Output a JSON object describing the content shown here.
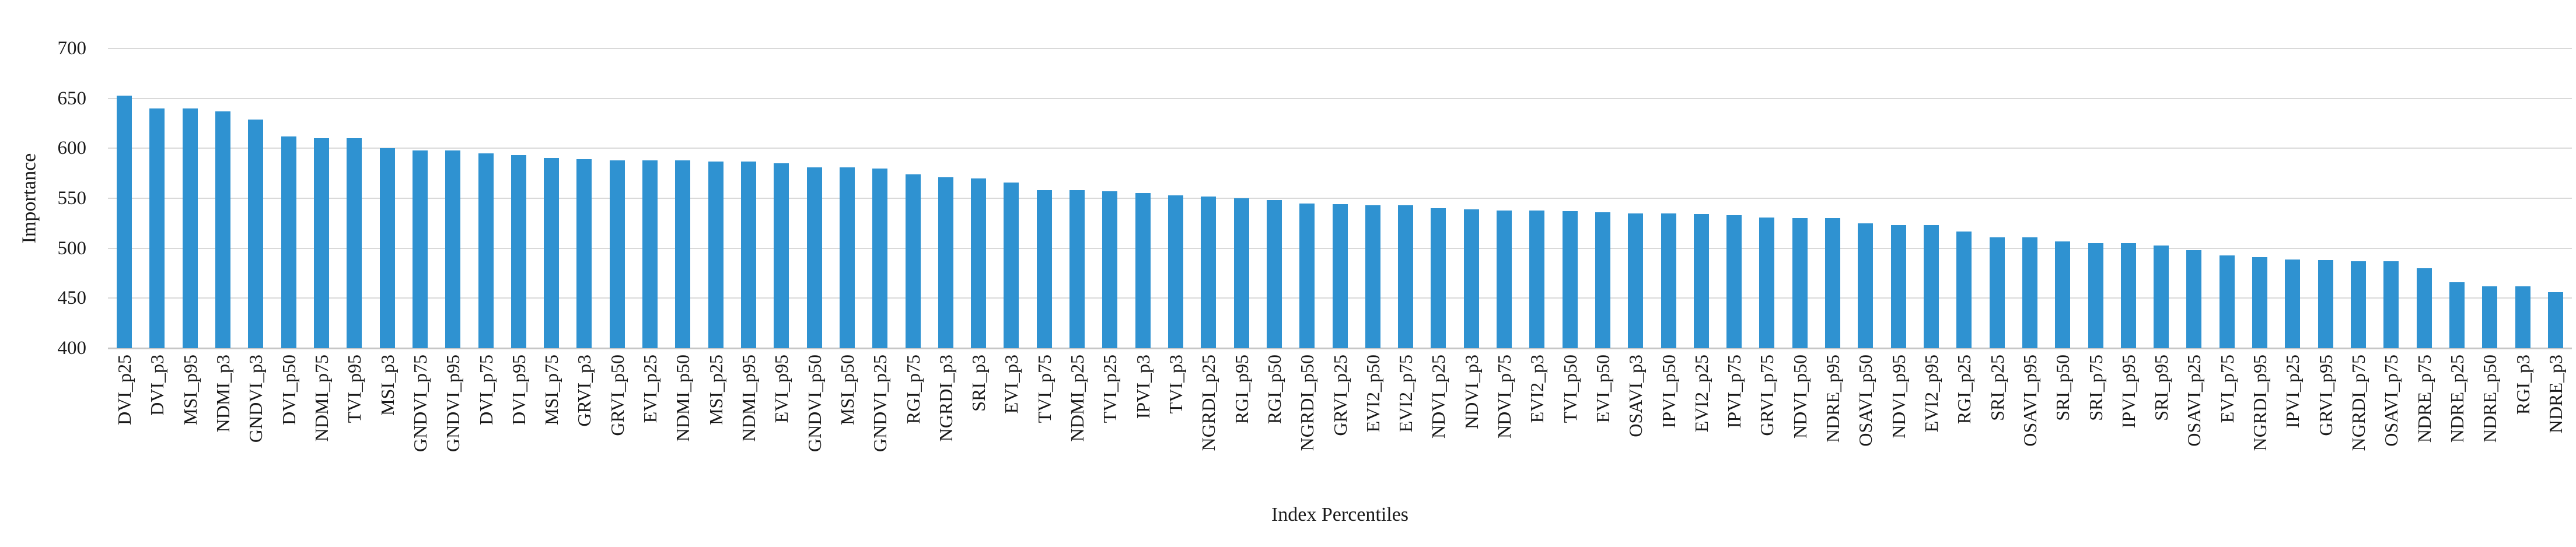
{
  "chart_data": {
    "type": "bar",
    "title": "",
    "xlabel": "Index Percentiles",
    "ylabel": "Importance",
    "ylim": [
      400,
      700
    ],
    "yticks": [
      400,
      450,
      500,
      550,
      600,
      650,
      700
    ],
    "grid": "horizontal",
    "legend_position": "none",
    "bar_color": "#2F92D1",
    "gridline_color": "#D9D9D9",
    "axis_line_color": "#C6C6C6",
    "text_color": "#1a1a1a",
    "categories": [
      "DVI_p25",
      "DVI_p3",
      "MSI_p95",
      "NDMI_p3",
      "GNDVI_p3",
      "DVI_p50",
      "NDMI_p75",
      "TVI_p95",
      "MSI_p3",
      "GNDVI_p75",
      "GNDVI_p95",
      "DVI_p75",
      "DVI_p95",
      "MSI_p75",
      "GRVI_p3",
      "GRVI_p50",
      "EVI_p25",
      "NDMI_p50",
      "MSI_p25",
      "NDMI_p95",
      "EVI_p95",
      "GNDVI_p50",
      "MSI_p50",
      "GNDVI_p25",
      "RGI_p75",
      "NGRDI_p3",
      "SRI_p3",
      "EVI_p3",
      "TVI_p75",
      "NDMI_p25",
      "TVI_p25",
      "IPVI_p3",
      "TVI_p3",
      "NGRDI_p25",
      "RGI_p95",
      "RGI_p50",
      "NGRDI_p50",
      "GRVI_p25",
      "EVI2_p50",
      "EVI2_p75",
      "NDVI_p25",
      "NDVI_p3",
      "NDVI_p75",
      "EVI2_p3",
      "TVI_p50",
      "EVI_p50",
      "OSAVI_p3",
      "IPVI_p50",
      "EVI2_p25",
      "IPVI_p75",
      "GRVI_p75",
      "NDVI_p50",
      "NDRE_p95",
      "OSAVI_p50",
      "NDVI_p95",
      "EVI2_p95",
      "RGI_p25",
      "SRI_p25",
      "OSAVI_p95",
      "SRI_p50",
      "SRI_p75",
      "IPVI_p95",
      "SRI_p95",
      "OSAVI_p25",
      "EVI_p75",
      "NGRDI_p95",
      "IPVI_p25",
      "GRVI_p95",
      "NGRDI_p75",
      "OSAVI_p75",
      "NDRE_p75",
      "NDRE_p25",
      "NDRE_p50",
      "RGI_p3",
      "NDRE_p3"
    ],
    "values": [
      653,
      640,
      640,
      637,
      629,
      612,
      610,
      610,
      600,
      598,
      598,
      595,
      593,
      590,
      589,
      588,
      588,
      588,
      587,
      587,
      585,
      581,
      581,
      580,
      574,
      571,
      570,
      566,
      558,
      558,
      557,
      555,
      553,
      552,
      550,
      548,
      545,
      544,
      543,
      543,
      540,
      539,
      538,
      538,
      537,
      536,
      535,
      535,
      534,
      533,
      531,
      530,
      530,
      525,
      523,
      523,
      517,
      511,
      511,
      507,
      505,
      505,
      503,
      498,
      493,
      491,
      489,
      488,
      487,
      487,
      480,
      466,
      462,
      462,
      456
    ]
  }
}
